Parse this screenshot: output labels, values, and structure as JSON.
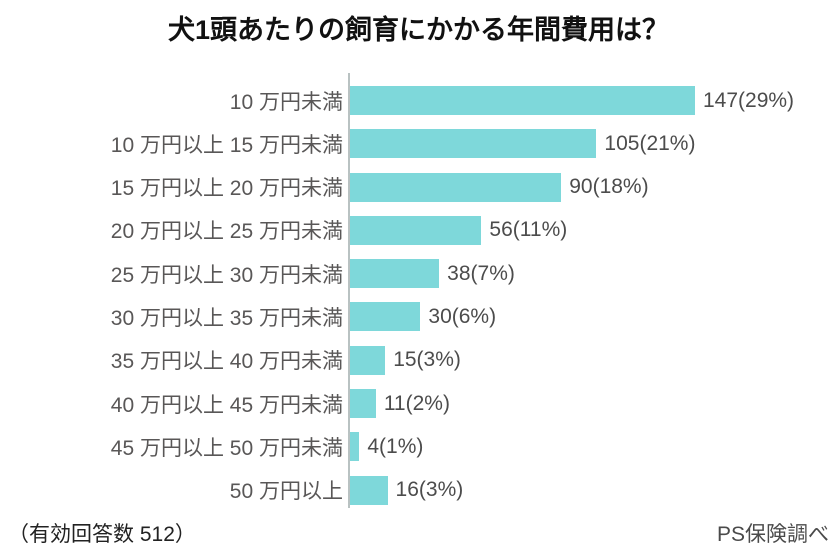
{
  "chart_data": {
    "type": "bar",
    "orientation": "horizontal",
    "title": "犬1頭あたりの飼育にかかる年間費用は？",
    "categories": [
      "10 万円未満",
      "10 万円以上 15 万円未満",
      "15 万円以上 20 万円未満",
      "20 万円以上 25 万円未満",
      "25 万円以上 30 万円未満",
      "30 万円以上 35 万円未満",
      "35 万円以上 40 万円未満",
      "40 万円以上 45 万円未満",
      "45 万円以上 50 万円未満",
      "50 万円以上"
    ],
    "values": [
      147,
      105,
      90,
      56,
      38,
      30,
      15,
      11,
      4,
      16
    ],
    "percents": [
      29,
      21,
      18,
      11,
      7,
      6,
      3,
      2,
      1,
      3
    ],
    "value_labels": [
      "147(29%)",
      "105(21%)",
      "90(18%)",
      "56(11%)",
      "38(7%)",
      "30(6%)",
      "15(3%)",
      "11(2%)",
      "4(1%)",
      "16(3%)"
    ],
    "total_responses": 512,
    "bar_color": "#7ed8da",
    "axis_line_color": "#b9c2c2",
    "xlim": [
      0,
      150
    ],
    "legend": "none",
    "grid": "off"
  },
  "footer": {
    "left": "（有効回答数 512）",
    "right": "PS保険調べ"
  }
}
